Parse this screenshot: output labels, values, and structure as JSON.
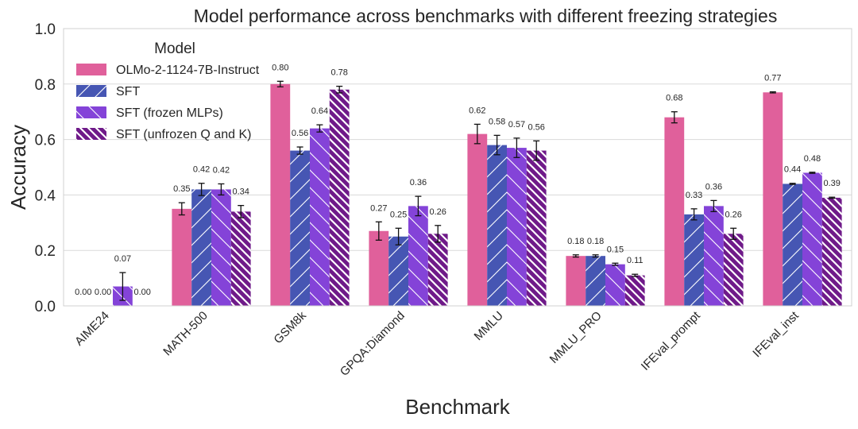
{
  "chart_data": {
    "type": "bar",
    "title": "Model performance across benchmarks with different freezing strategies",
    "xlabel": "Benchmark",
    "ylabel": "Accuracy",
    "ylim": [
      0,
      1.0
    ],
    "yticks": [
      0.0,
      0.2,
      0.4,
      0.6,
      0.8,
      1.0
    ],
    "ytick_labels": [
      "0.0",
      "0.2",
      "0.4",
      "0.6",
      "0.8",
      "1.0"
    ],
    "grid": true,
    "legend": {
      "title": "Model",
      "placement": "top-left"
    },
    "categories": [
      "AIME24",
      "MATH-500",
      "GSM8k",
      "GPQA:Diamond",
      "MMLU",
      "MMLU_PRO",
      "IFEval_prompt",
      "IFEval_inst"
    ],
    "series": [
      {
        "name": "OLMo-2-1124-7B-Instruct",
        "color": "#e0609b",
        "hatch": "none",
        "values": [
          0.0,
          0.35,
          0.8,
          0.27,
          0.62,
          0.18,
          0.68,
          0.77
        ],
        "errors": [
          0.0,
          0.022,
          0.01,
          0.033,
          0.035,
          0.004,
          0.02,
          0.002
        ],
        "value_labels": [
          "0.00",
          "0.35",
          "0.80",
          "0.27",
          "0.62",
          "0.18",
          "0.68",
          "0.77"
        ]
      },
      {
        "name": "SFT",
        "color": "#4656b3",
        "hatch": "forward",
        "values": [
          0.0,
          0.42,
          0.56,
          0.25,
          0.58,
          0.18,
          0.33,
          0.44
        ],
        "errors": [
          0.0,
          0.022,
          0.013,
          0.03,
          0.035,
          0.004,
          0.02,
          0.002
        ],
        "value_labels": [
          "0.00",
          "0.42",
          "0.56",
          "0.25",
          "0.58",
          "0.18",
          "0.33",
          "0.44"
        ]
      },
      {
        "name": "SFT (frozen MLPs)",
        "color": "#8443d8",
        "hatch": "backward",
        "values": [
          0.07,
          0.42,
          0.64,
          0.36,
          0.57,
          0.15,
          0.36,
          0.48
        ],
        "errors": [
          0.05,
          0.02,
          0.013,
          0.035,
          0.035,
          0.004,
          0.02,
          0.002
        ],
        "value_labels": [
          "0.07",
          "0.42",
          "0.64",
          "0.36",
          "0.57",
          "0.15",
          "0.36",
          "0.48"
        ]
      },
      {
        "name": "SFT (unfrozen Q and K)",
        "color": "#6f1a89",
        "hatch": "dense-backward",
        "values": [
          0.0,
          0.34,
          0.78,
          0.26,
          0.56,
          0.11,
          0.26,
          0.39
        ],
        "errors": [
          0.0,
          0.022,
          0.012,
          0.03,
          0.035,
          0.004,
          0.02,
          0.002
        ],
        "value_labels": [
          "0.00",
          "0.34",
          "0.78",
          "0.26",
          "0.56",
          "0.11",
          "0.26",
          "0.39"
        ]
      }
    ]
  }
}
